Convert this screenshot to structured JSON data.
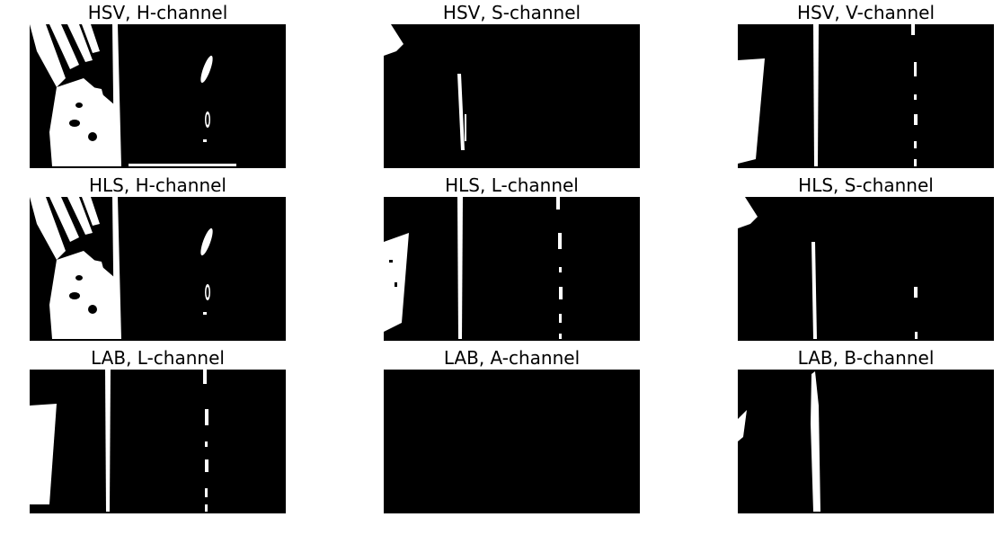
{
  "panels": [
    {
      "title": "HSV, H-channel"
    },
    {
      "title": "HSV, S-channel"
    },
    {
      "title": "HSV, V-channel"
    },
    {
      "title": "HLS, H-channel"
    },
    {
      "title": "HLS, L-channel"
    },
    {
      "title": "HLS, S-channel"
    },
    {
      "title": "LAB, L-channel"
    },
    {
      "title": "LAB, A-channel"
    },
    {
      "title": "LAB, B-channel"
    }
  ],
  "colors": {
    "foreground": "#ffffff",
    "background": "#000000"
  }
}
